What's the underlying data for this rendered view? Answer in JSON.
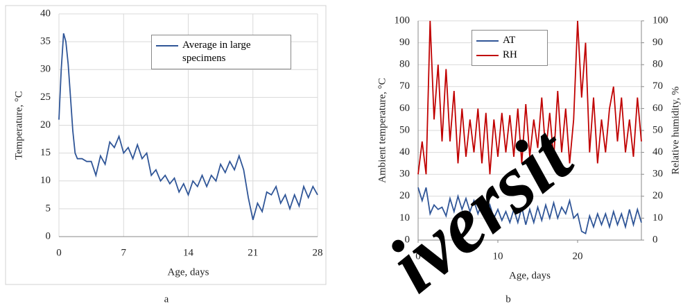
{
  "chart_data": [
    {
      "type": "line",
      "caption": "a",
      "xlabel": "Age, days",
      "ylabel": "Temperature, °C",
      "x": [
        0,
        0.25,
        0.5,
        0.75,
        1,
        1.25,
        1.5,
        1.75,
        2,
        2.5,
        3,
        3.5,
        4,
        4.5,
        5,
        5.5,
        6,
        6.5,
        7,
        7.5,
        8,
        8.5,
        9,
        9.5,
        10,
        10.5,
        11,
        11.5,
        12,
        12.5,
        13,
        13.5,
        14,
        14.5,
        15,
        15.5,
        16,
        16.5,
        17,
        17.5,
        18,
        18.5,
        19,
        19.5,
        20,
        20.5,
        21,
        21.5,
        22,
        22.5,
        23,
        23.5,
        24,
        24.5,
        25,
        25.5,
        26,
        26.5,
        27,
        27.5,
        28
      ],
      "series": [
        {
          "name": "Average in large specimens",
          "color": "#2f5597",
          "values": [
            21,
            30,
            36.5,
            35,
            31,
            25,
            19,
            15,
            14,
            14,
            13.5,
            13.5,
            11,
            14.5,
            13,
            17,
            16,
            18,
            15,
            16,
            14,
            16.5,
            14,
            15,
            11,
            12,
            10,
            11,
            9.5,
            10.5,
            8,
            9.5,
            7.5,
            10,
            9,
            11,
            9,
            11,
            10,
            13,
            11.5,
            13.5,
            12,
            14.5,
            12,
            7,
            3,
            6,
            4.5,
            8,
            7.5,
            9,
            6,
            7.5,
            5,
            7.5,
            5.5,
            9,
            7,
            9,
            7.5
          ]
        }
      ],
      "xlim": [
        0,
        28
      ],
      "xticks": [
        0,
        7,
        14,
        21,
        28
      ],
      "ylim": [
        0,
        40
      ],
      "yticks": [
        0,
        5,
        10,
        15,
        20,
        25,
        30,
        35,
        40
      ],
      "grid": true,
      "legend": "top-right"
    },
    {
      "type": "line",
      "caption": "b",
      "xlabel": "Age, days",
      "ylabel": "Ambient temperature, °C",
      "y2label": "Relative humidity, %",
      "x": [
        0,
        0.5,
        1,
        1.5,
        2,
        2.5,
        3,
        3.5,
        4,
        4.5,
        5,
        5.5,
        6,
        6.5,
        7,
        7.5,
        8,
        8.5,
        9,
        9.5,
        10,
        10.5,
        11,
        11.5,
        12,
        12.5,
        13,
        13.5,
        14,
        14.5,
        15,
        15.5,
        16,
        16.5,
        17,
        17.5,
        18,
        18.5,
        19,
        19.5,
        20,
        20.5,
        21,
        21.5,
        22,
        22.5,
        23,
        23.5,
        24,
        24.5,
        25,
        25.5,
        26,
        26.5,
        27,
        27.5,
        28
      ],
      "series": [
        {
          "name": "AT",
          "color": "#2f5597",
          "values": [
            24,
            18,
            24,
            12,
            16,
            14,
            15,
            11,
            19,
            13,
            20,
            14,
            19,
            13,
            18,
            12,
            17,
            11,
            16,
            10,
            14,
            9,
            13,
            8,
            14,
            8,
            15,
            7,
            14,
            8,
            15,
            9,
            16,
            10,
            17,
            10,
            15,
            12,
            18,
            10,
            12,
            4,
            3,
            11,
            6,
            12,
            7,
            12,
            6,
            13,
            7,
            12,
            6,
            14,
            7,
            14,
            8
          ]
        },
        {
          "name": "RH",
          "color": "#c00000",
          "axis": "y2",
          "values": [
            30,
            45,
            30,
            100,
            55,
            80,
            45,
            78,
            45,
            68,
            35,
            60,
            38,
            55,
            40,
            60,
            35,
            58,
            30,
            55,
            38,
            58,
            40,
            57,
            38,
            60,
            35,
            62,
            38,
            55,
            42,
            65,
            40,
            58,
            37,
            68,
            40,
            60,
            35,
            55,
            100,
            65,
            90,
            40,
            65,
            35,
            55,
            40,
            60,
            70,
            45,
            65,
            40,
            55,
            38,
            65,
            45
          ]
        }
      ],
      "xlim": [
        0,
        28
      ],
      "xticks": [
        0,
        10,
        20
      ],
      "ylim": [
        0,
        100
      ],
      "yticks": [
        0,
        10,
        20,
        30,
        40,
        50,
        60,
        70,
        80,
        90,
        100
      ],
      "y2lim": [
        0,
        100
      ],
      "y2ticks": [
        0,
        10,
        20,
        30,
        40,
        50,
        60,
        70,
        80,
        90,
        100
      ],
      "grid": true,
      "legend": "top-left"
    }
  ],
  "watermark": "iversit"
}
